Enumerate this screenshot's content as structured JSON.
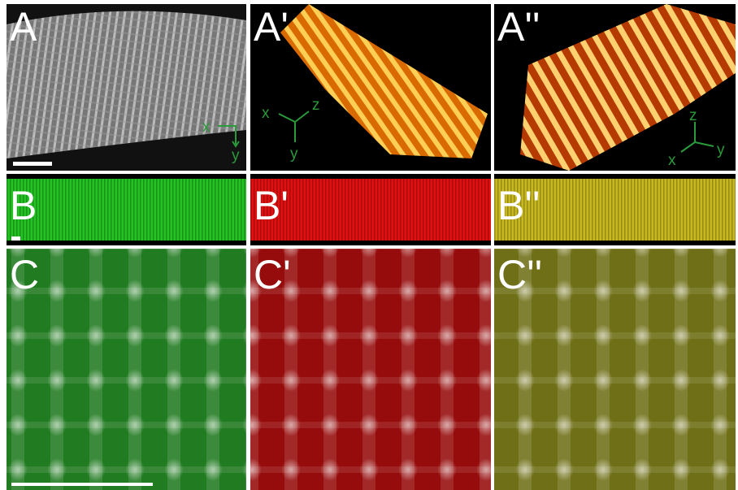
{
  "panels": [
    {
      "label": "A",
      "axes": [
        "x",
        "y"
      ]
    },
    {
      "label": "A'",
      "axes": [
        "x",
        "z",
        "y"
      ]
    },
    {
      "label": "A''",
      "axes": [
        "z",
        "x",
        "y"
      ]
    },
    {
      "label": "B"
    },
    {
      "label": "B'"
    },
    {
      "label": "B''"
    },
    {
      "label": "C"
    },
    {
      "label": "C'"
    },
    {
      "label": "C''"
    }
  ]
}
